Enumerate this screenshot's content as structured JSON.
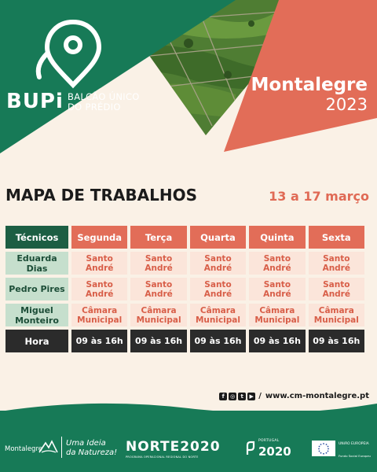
{
  "header": {
    "logo_word": "BUPi",
    "logo_sub_line1": "BALCÃO ÚNICO",
    "logo_sub_line2": "DO PRÉDIO",
    "place": "Montalegre",
    "year": "2023"
  },
  "title": "MAPA DE TRABALHOS",
  "date_range": "13 a 17 março",
  "table": {
    "col_header": "Técnicos",
    "days": [
      "Segunda",
      "Terça",
      "Quarta",
      "Quinta",
      "Sexta"
    ],
    "rows": [
      {
        "name": "Eduarda Dias",
        "values": [
          "Santo André",
          "Santo André",
          "Santo André",
          "Santo André",
          "Santo André"
        ]
      },
      {
        "name": "Pedro Pires",
        "values": [
          "Santo André",
          "Santo André",
          "Santo André",
          "Santo André",
          "Santo André"
        ]
      },
      {
        "name_line1": "Miguel",
        "name_line2": "Monteiro",
        "value_line1": "Câmara",
        "value_line2": "Municipal"
      }
    ],
    "hora_label": "Hora",
    "hora_values": [
      "09 às 16h",
      "09 às 16h",
      "09 às 16h",
      "09 às 16h",
      "09 às 16h"
    ]
  },
  "social": {
    "icons": [
      "facebook-icon",
      "instagram-icon",
      "twitter-icon",
      "youtube-icon"
    ],
    "url": "www.cm-montalegre.pt"
  },
  "footer": {
    "municipality": "Montalegre",
    "slogan_line1": "Uma Ideia",
    "slogan_line2": "da Natureza!",
    "norte": "NORTE2020",
    "norte_sub": "PROGRAMA OPERACIONAL REGIONAL DO NORTE",
    "portugal_label": "PORTUGAL",
    "portugal_year": "2020",
    "eu_label": "UNIÃO EUROPEIA",
    "eu_fund": "Fundo Social Europeu"
  },
  "colors": {
    "green": "#177a57",
    "salmon": "#e26d58",
    "dark": "#2b2b2b",
    "cream": "#faf1e6"
  }
}
